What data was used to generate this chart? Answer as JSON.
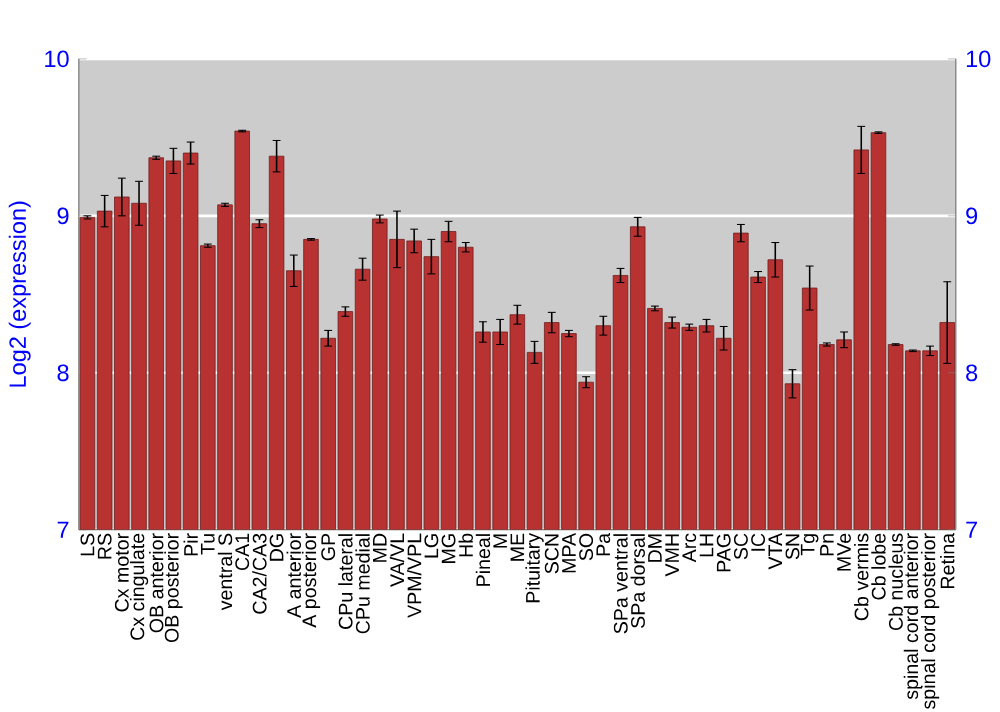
{
  "chart_data": {
    "type": "bar",
    "ylabel": "Log2 (expression)",
    "categories": [
      "LS",
      "RS",
      "Cx motor",
      "Cx cingulate",
      "OB anterior",
      "OB posterior",
      "Pir",
      "Tu",
      "ventral S",
      "CA1",
      "CA2/CA3",
      "DG",
      "A anterior",
      "A posterior",
      "GP",
      "CPu lateral",
      "CPu medial",
      "MD",
      "VA/VL",
      "VPM/VPL",
      "LG",
      "MG",
      "Hb",
      "Pineal",
      "M",
      "ME",
      "Pituitary",
      "SCN",
      "MPA",
      "SO",
      "Pa",
      "SPa ventral",
      "SPa dorsal",
      "DM",
      "VMH",
      "Arc",
      "LH",
      "PAG",
      "SC",
      "IC",
      "VTA",
      "SN",
      "Tg",
      "Pn",
      "MVe",
      "Cb vermis",
      "Cb lobe",
      "Cb nucleus",
      "spinal cord anterior",
      "spinal cord posterior",
      "Retina"
    ],
    "values": [
      8.99,
      9.03,
      9.12,
      9.08,
      9.37,
      9.35,
      9.4,
      8.81,
      9.07,
      9.54,
      8.95,
      9.38,
      8.65,
      8.85,
      8.22,
      8.39,
      8.66,
      8.98,
      8.85,
      8.84,
      8.74,
      8.9,
      8.8,
      8.26,
      8.26,
      8.37,
      8.13,
      8.32,
      8.25,
      7.94,
      8.3,
      8.62,
      8.93,
      8.41,
      8.32,
      8.29,
      8.3,
      8.22,
      8.89,
      8.61,
      8.72,
      7.93,
      8.54,
      8.18,
      8.21,
      9.42,
      9.53,
      8.18,
      8.14,
      8.14,
      8.32
    ],
    "errors": [
      0.01,
      0.1,
      0.12,
      0.14,
      0.01,
      0.08,
      0.07,
      0.01,
      0.01,
      0.005,
      0.025,
      0.1,
      0.1,
      0.005,
      0.05,
      0.03,
      0.07,
      0.025,
      0.18,
      0.075,
      0.11,
      0.065,
      0.03,
      0.065,
      0.08,
      0.06,
      0.07,
      0.065,
      0.02,
      0.035,
      0.06,
      0.045,
      0.06,
      0.015,
      0.035,
      0.02,
      0.04,
      0.075,
      0.055,
      0.035,
      0.11,
      0.09,
      0.14,
      0.01,
      0.05,
      0.15,
      0.005,
      0.005,
      0.005,
      0.03,
      0.26
    ],
    "color": "#b83232",
    "ylim": [
      7,
      10
    ],
    "yticks": [
      7,
      8,
      9,
      10
    ],
    "y2lim": [
      7,
      10
    ],
    "y2ticks": [
      7,
      8,
      9,
      10
    ],
    "grid": "y"
  }
}
